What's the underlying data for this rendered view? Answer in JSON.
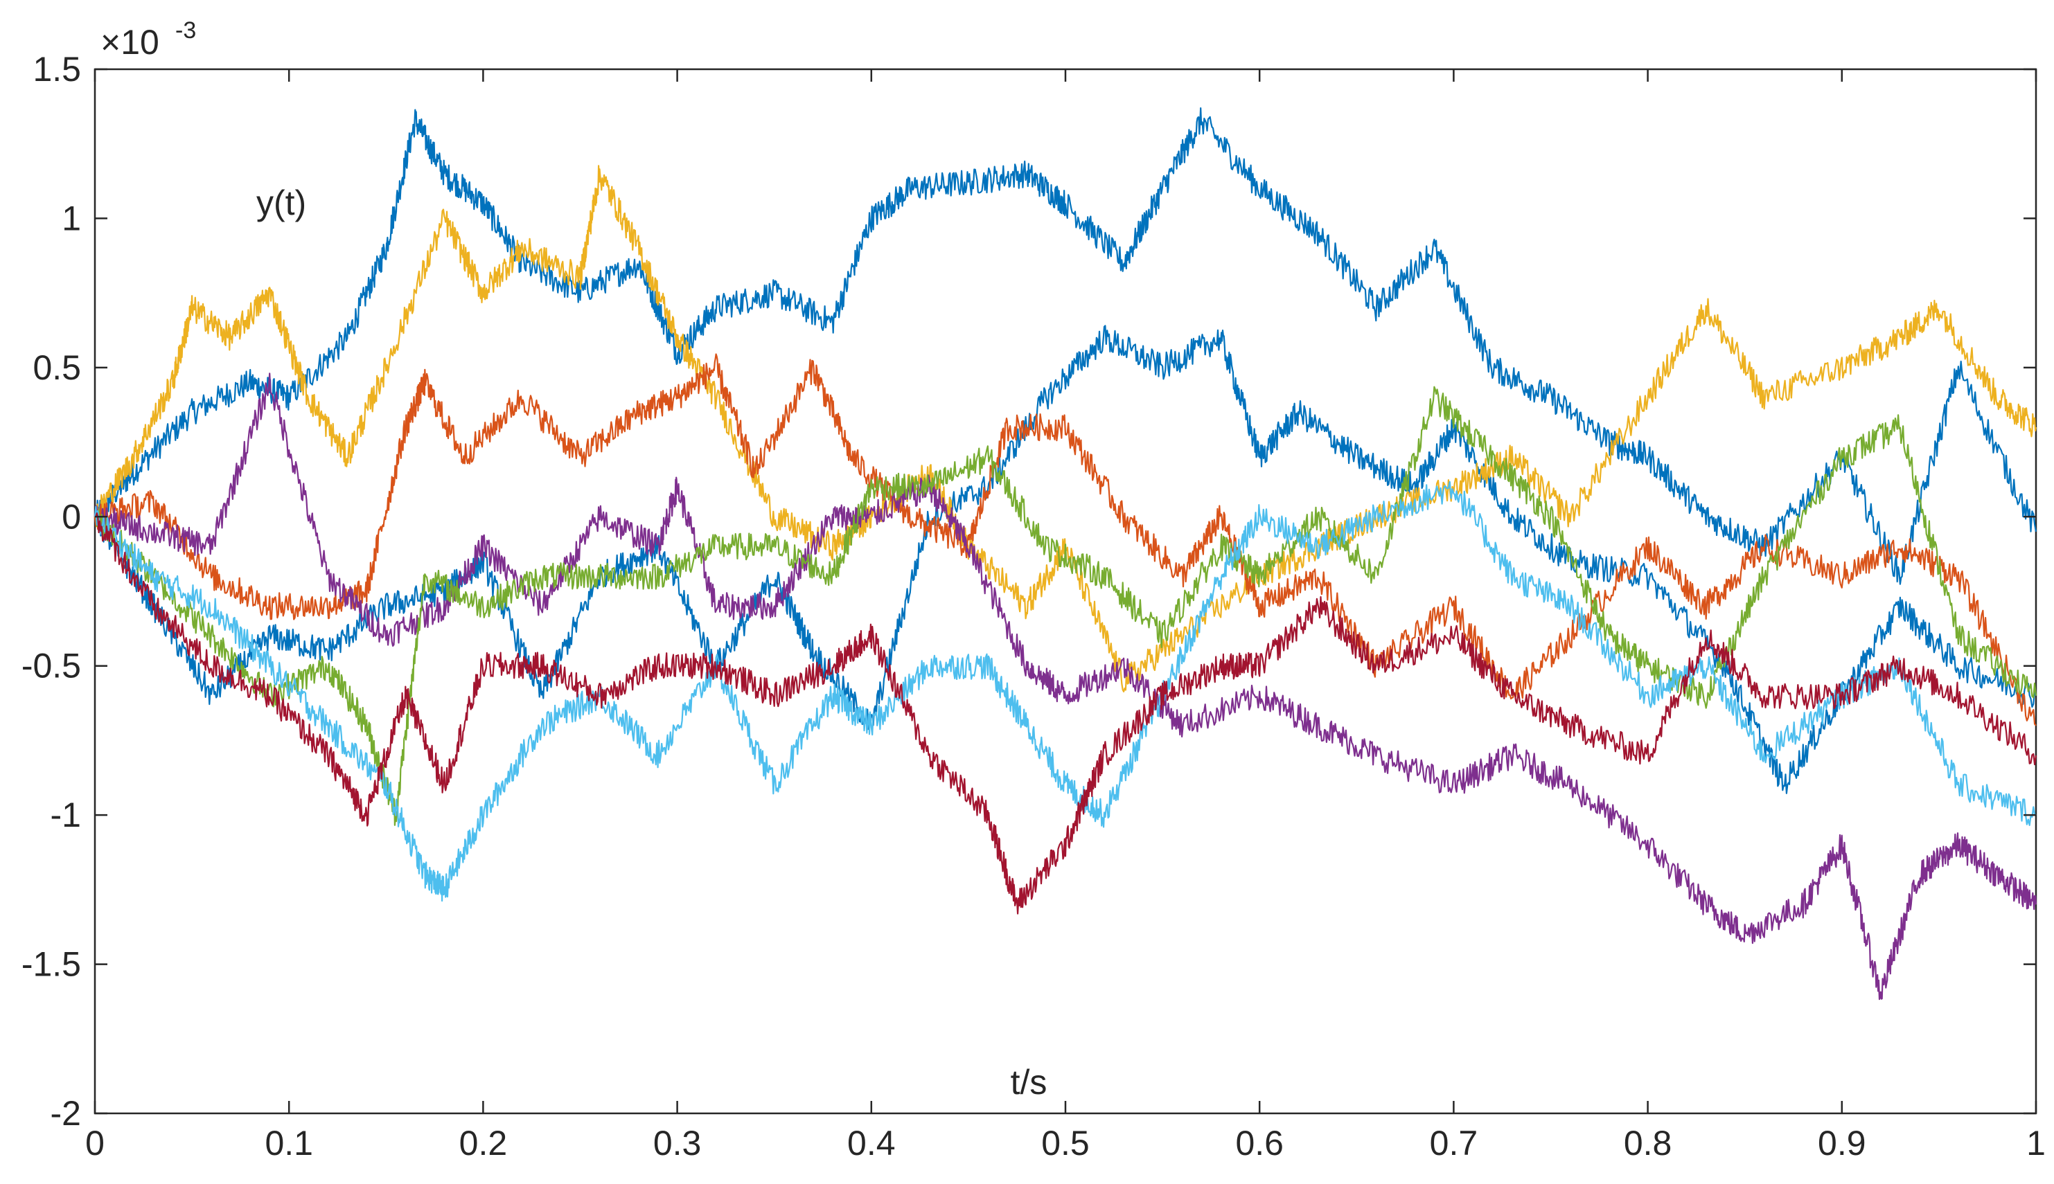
{
  "chart_data": {
    "type": "line",
    "title": "",
    "xlabel": "t/s",
    "ylabel": "y(t)",
    "y_exponent": {
      "base": "×10",
      "power": "-3"
    },
    "xlim": [
      0,
      1
    ],
    "ylim": [
      -2,
      1.5
    ],
    "grid": false,
    "legend": "none",
    "x_ticks": [
      "0",
      "0.1",
      "0.2",
      "0.3",
      "0.4",
      "0.5",
      "0.6",
      "0.7",
      "0.8",
      "0.9",
      "1"
    ],
    "y_ticks": [
      "1.5",
      "1",
      "0.5",
      "0",
      "-0.5",
      "-1",
      "-1.5",
      "-2"
    ],
    "x_tick_values": [
      0,
      0.1,
      0.2,
      0.3,
      0.4,
      0.5,
      0.6,
      0.7,
      0.8,
      0.9,
      1
    ],
    "y_tick_values": [
      1.5,
      1,
      0.5,
      0,
      -0.5,
      -1,
      -1.5,
      -2
    ],
    "series": [
      {
        "color": "#0072BD",
        "x": [
          0,
          0.02,
          0.05,
          0.08,
          0.1,
          0.13,
          0.15,
          0.165,
          0.18,
          0.2,
          0.22,
          0.25,
          0.28,
          0.3,
          0.32,
          0.35,
          0.38,
          0.4,
          0.42,
          0.45,
          0.48,
          0.5,
          0.53,
          0.55,
          0.57,
          0.6,
          0.63,
          0.66,
          0.69,
          0.72,
          0.75,
          0.78,
          0.8,
          0.83,
          0.86,
          0.9,
          0.93,
          0.96,
          1
        ],
        "y": [
          0,
          0.15,
          0.35,
          0.45,
          0.4,
          0.6,
          0.9,
          1.33,
          1.15,
          1.05,
          0.85,
          0.75,
          0.85,
          0.55,
          0.7,
          0.75,
          0.65,
          1.0,
          1.1,
          1.12,
          1.15,
          1.05,
          0.85,
          1.1,
          1.33,
          1.1,
          0.95,
          0.7,
          0.9,
          0.5,
          0.4,
          0.25,
          0.2,
          0.0,
          -0.1,
          0.2,
          -0.2,
          0.5,
          -0.05
        ]
      },
      {
        "color": "#0072BD",
        "x": [
          0,
          0.03,
          0.06,
          0.09,
          0.12,
          0.15,
          0.18,
          0.2,
          0.23,
          0.26,
          0.29,
          0.32,
          0.35,
          0.37,
          0.4,
          0.43,
          0.46,
          0.49,
          0.52,
          0.55,
          0.58,
          0.6,
          0.62,
          0.65,
          0.68,
          0.7,
          0.73,
          0.76,
          0.8,
          0.84,
          0.87,
          0.9,
          0.93,
          0.96,
          1
        ],
        "y": [
          0,
          -0.3,
          -0.6,
          -0.4,
          -0.45,
          -0.3,
          -0.25,
          -0.15,
          -0.6,
          -0.2,
          -0.1,
          -0.5,
          -0.2,
          -0.45,
          -0.7,
          0.0,
          0.1,
          0.4,
          0.6,
          0.5,
          0.6,
          0.2,
          0.35,
          0.2,
          0.1,
          0.3,
          0.0,
          -0.15,
          -0.2,
          -0.5,
          -0.9,
          -0.6,
          -0.3,
          -0.5,
          -0.6
        ]
      },
      {
        "color": "#EDB120",
        "x": [
          0,
          0.02,
          0.04,
          0.05,
          0.07,
          0.09,
          0.11,
          0.13,
          0.15,
          0.18,
          0.2,
          0.22,
          0.25,
          0.26,
          0.28,
          0.3,
          0.32,
          0.35,
          0.38,
          0.4,
          0.43,
          0.45,
          0.48,
          0.5,
          0.53,
          0.56,
          0.6,
          0.63,
          0.66,
          0.7,
          0.73,
          0.76,
          0.8,
          0.83,
          0.86,
          0.9,
          0.93,
          0.95,
          0.98,
          1
        ],
        "y": [
          0,
          0.2,
          0.45,
          0.7,
          0.6,
          0.75,
          0.4,
          0.2,
          0.5,
          1.0,
          0.75,
          0.9,
          0.8,
          1.15,
          0.9,
          0.6,
          0.4,
          0.0,
          -0.1,
          0.0,
          0.15,
          -0.1,
          -0.3,
          -0.1,
          -0.55,
          -0.4,
          -0.2,
          -0.1,
          0.0,
          0.1,
          0.2,
          0.0,
          0.4,
          0.7,
          0.4,
          0.5,
          0.6,
          0.7,
          0.4,
          0.3
        ]
      },
      {
        "color": "#D95319",
        "x": [
          0,
          0.03,
          0.06,
          0.09,
          0.12,
          0.14,
          0.16,
          0.17,
          0.19,
          0.22,
          0.25,
          0.28,
          0.3,
          0.32,
          0.34,
          0.37,
          0.39,
          0.42,
          0.45,
          0.47,
          0.5,
          0.53,
          0.56,
          0.58,
          0.6,
          0.63,
          0.66,
          0.7,
          0.73,
          0.76,
          0.8,
          0.83,
          0.86,
          0.9,
          0.93,
          0.96,
          1
        ],
        "y": [
          0,
          0.05,
          -0.2,
          -0.3,
          -0.3,
          -0.25,
          0.3,
          0.45,
          0.2,
          0.4,
          0.2,
          0.35,
          0.4,
          0.5,
          0.15,
          0.5,
          0.2,
          0.0,
          -0.1,
          0.3,
          0.3,
          0.0,
          -0.2,
          0.0,
          -0.3,
          -0.2,
          -0.5,
          -0.3,
          -0.6,
          -0.4,
          -0.1,
          -0.3,
          -0.1,
          -0.2,
          -0.1,
          -0.2,
          -0.7
        ]
      },
      {
        "color": "#7E2F8E",
        "x": [
          0,
          0.03,
          0.06,
          0.09,
          0.12,
          0.15,
          0.18,
          0.2,
          0.23,
          0.26,
          0.29,
          0.3,
          0.32,
          0.35,
          0.38,
          0.4,
          0.43,
          0.45,
          0.48,
          0.5,
          0.53,
          0.56,
          0.6,
          0.63,
          0.66,
          0.7,
          0.73,
          0.76,
          0.8,
          0.83,
          0.85,
          0.88,
          0.9,
          0.92,
          0.94,
          0.96,
          0.98,
          1
        ],
        "y": [
          0,
          -0.05,
          -0.1,
          0.45,
          -0.2,
          -0.4,
          -0.3,
          -0.1,
          -0.3,
          0.0,
          -0.1,
          0.1,
          -0.3,
          -0.3,
          0.0,
          0.0,
          0.1,
          -0.1,
          -0.5,
          -0.6,
          -0.5,
          -0.7,
          -0.6,
          -0.7,
          -0.8,
          -0.9,
          -0.8,
          -0.9,
          -1.1,
          -1.3,
          -1.4,
          -1.3,
          -1.1,
          -1.6,
          -1.2,
          -1.1,
          -1.2,
          -1.3
        ]
      },
      {
        "color": "#77AC30",
        "x": [
          0,
          0.03,
          0.06,
          0.09,
          0.12,
          0.14,
          0.155,
          0.17,
          0.2,
          0.23,
          0.26,
          0.29,
          0.32,
          0.35,
          0.38,
          0.4,
          0.43,
          0.46,
          0.49,
          0.52,
          0.55,
          0.58,
          0.6,
          0.63,
          0.66,
          0.69,
          0.72,
          0.75,
          0.78,
          0.8,
          0.83,
          0.86,
          0.9,
          0.93,
          0.96,
          1
        ],
        "y": [
          0,
          -0.2,
          -0.4,
          -0.6,
          -0.5,
          -0.7,
          -1.0,
          -0.2,
          -0.3,
          -0.2,
          -0.2,
          -0.2,
          -0.1,
          -0.1,
          -0.2,
          0.1,
          0.1,
          0.2,
          -0.1,
          -0.2,
          -0.4,
          -0.1,
          -0.2,
          0.0,
          -0.2,
          0.4,
          0.2,
          0.0,
          -0.4,
          -0.5,
          -0.6,
          -0.2,
          0.2,
          0.3,
          -0.4,
          -0.6
        ]
      },
      {
        "color": "#4DBEEE",
        "x": [
          0,
          0.03,
          0.06,
          0.09,
          0.12,
          0.15,
          0.17,
          0.18,
          0.2,
          0.23,
          0.26,
          0.29,
          0.32,
          0.35,
          0.38,
          0.4,
          0.43,
          0.46,
          0.48,
          0.5,
          0.52,
          0.55,
          0.58,
          0.6,
          0.63,
          0.66,
          0.7,
          0.73,
          0.76,
          0.8,
          0.83,
          0.86,
          0.9,
          0.93,
          0.96,
          1
        ],
        "y": [
          0,
          -0.2,
          -0.3,
          -0.5,
          -0.7,
          -0.9,
          -1.2,
          -1.25,
          -1.0,
          -0.7,
          -0.6,
          -0.8,
          -0.5,
          -0.9,
          -0.6,
          -0.7,
          -0.5,
          -0.5,
          -0.7,
          -0.9,
          -1.0,
          -0.6,
          -0.2,
          0.0,
          -0.1,
          0.0,
          0.1,
          -0.2,
          -0.3,
          -0.6,
          -0.5,
          -0.8,
          -0.6,
          -0.5,
          -0.9,
          -1.0
        ]
      },
      {
        "color": "#A2142F",
        "x": [
          0,
          0.03,
          0.06,
          0.09,
          0.12,
          0.14,
          0.16,
          0.18,
          0.2,
          0.23,
          0.26,
          0.29,
          0.32,
          0.35,
          0.38,
          0.4,
          0.43,
          0.46,
          0.475,
          0.5,
          0.52,
          0.55,
          0.58,
          0.6,
          0.63,
          0.66,
          0.7,
          0.73,
          0.76,
          0.8,
          0.83,
          0.86,
          0.9,
          0.93,
          0.96,
          1
        ],
        "y": [
          0,
          -0.3,
          -0.5,
          -0.6,
          -0.8,
          -1.0,
          -0.6,
          -0.9,
          -0.5,
          -0.5,
          -0.6,
          -0.5,
          -0.5,
          -0.6,
          -0.5,
          -0.4,
          -0.8,
          -1.0,
          -1.3,
          -1.1,
          -0.8,
          -0.6,
          -0.5,
          -0.5,
          -0.3,
          -0.5,
          -0.4,
          -0.6,
          -0.7,
          -0.8,
          -0.4,
          -0.6,
          -0.6,
          -0.5,
          -0.6,
          -0.8
        ]
      }
    ]
  }
}
